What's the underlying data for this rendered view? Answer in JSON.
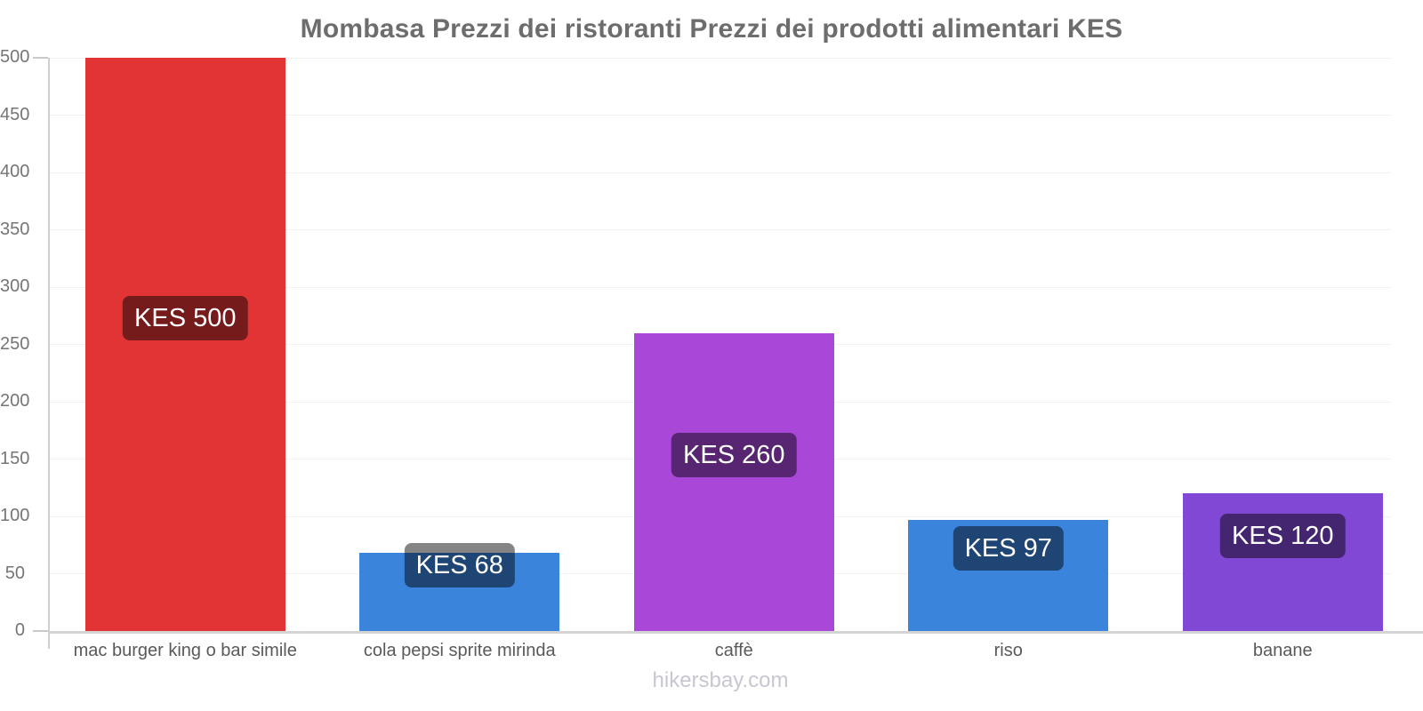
{
  "page": {
    "footer": "hikersbay.com"
  },
  "chart_data": {
    "type": "bar",
    "title": "Mombasa Prezzi dei ristoranti Prezzi dei prodotti alimentari KES",
    "currency": "KES",
    "categories": [
      "mac burger king o bar simile",
      "cola pepsi sprite mirinda",
      "caffè",
      "riso",
      "banane"
    ],
    "values": [
      500,
      68,
      260,
      97,
      120
    ],
    "bar_labels": [
      "KES 500",
      "KES 68",
      "KES 260",
      "KES 97",
      "KES 120"
    ],
    "bar_colors": [
      "#e23434",
      "#3a84dc",
      "#a847d8",
      "#3a84dc",
      "#8148d6"
    ],
    "value_label_bg": "rgba(0,0,0,0.48)",
    "value_label_color": "#ffffff",
    "xlabel": "",
    "ylabel": "",
    "ylim": [
      0,
      500
    ],
    "y_ticks": [
      0,
      50,
      100,
      150,
      200,
      250,
      300,
      350,
      400,
      450,
      500
    ],
    "tick_marks_at": [
      0,
      500
    ],
    "grid": "horizontal, very light",
    "legend": "none",
    "footer": "hikersbay.com"
  }
}
